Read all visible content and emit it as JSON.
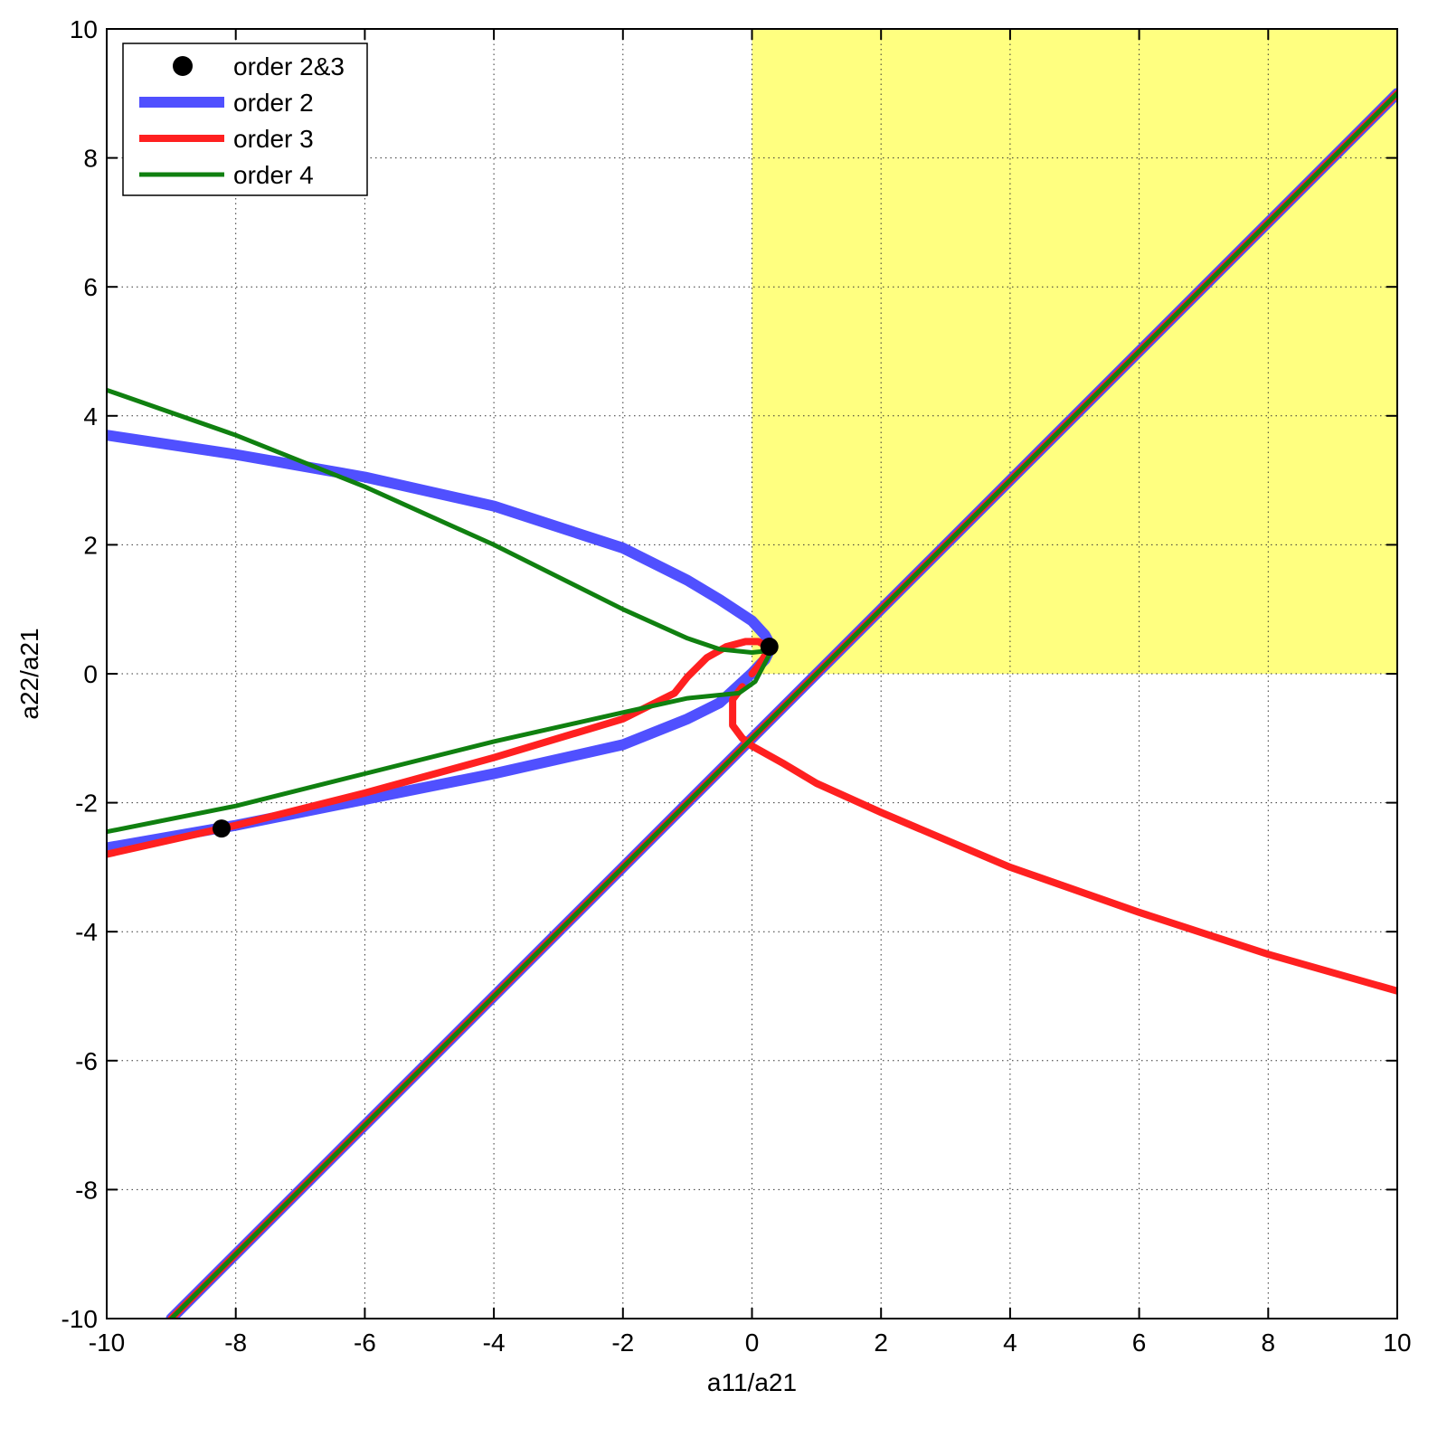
{
  "chart_data": {
    "type": "line",
    "title": "",
    "xlabel": "a11/a21",
    "ylabel": "a22/a21",
    "xlim": [
      -10,
      10
    ],
    "ylim": [
      -10,
      10
    ],
    "xticks": [
      -10,
      -8,
      -6,
      -4,
      -2,
      0,
      2,
      4,
      6,
      8,
      10
    ],
    "yticks": [
      -10,
      -8,
      -6,
      -4,
      -2,
      0,
      2,
      4,
      6,
      8,
      10
    ],
    "grid": true,
    "legend_position": "top-left",
    "shaded_region": {
      "x": [
        0,
        10
      ],
      "y": [
        0,
        10
      ],
      "color": "#ffff80"
    },
    "points": {
      "name": "order 2&3",
      "color": "#000000",
      "x": [
        0.27,
        -8.22
      ],
      "y": [
        0.42,
        -2.4
      ]
    },
    "series": [
      {
        "name": "order 2",
        "color": "#5050ff",
        "width": 12,
        "segments": [
          {
            "x": [
              -10,
              -8,
              -6,
              -4,
              -2,
              -1,
              -0.5,
              0,
              0.2,
              0.3,
              0.2,
              0,
              -0.5,
              -1,
              -2,
              -4,
              -6,
              -8,
              -10
            ],
            "y": [
              3.7,
              3.4,
              3.05,
              2.6,
              1.95,
              1.45,
              1.15,
              0.82,
              0.6,
              0.42,
              0.22,
              0.01,
              -0.45,
              -0.7,
              -1.1,
              -1.55,
              -1.95,
              -2.35,
              -2.7
            ]
          },
          {
            "x": [
              -9,
              10
            ],
            "y": [
              -10,
              9
            ]
          }
        ]
      },
      {
        "name": "order 3",
        "color": "#ff2020",
        "width": 8,
        "segments": [
          {
            "x": [
              -10,
              -8,
              -6,
              -4,
              -2,
              -1.2,
              -1,
              -0.7,
              -0.4,
              -0.1,
              0.1,
              0.25,
              0.2,
              0.1,
              0
            ],
            "y": [
              -2.8,
              -2.35,
              -1.85,
              -1.3,
              -0.7,
              -0.3,
              -0.05,
              0.25,
              0.42,
              0.5,
              0.5,
              0.42,
              0.28,
              0.12,
              0
            ]
          },
          {
            "x": [
              -0.15,
              -0.3,
              -0.3,
              -0.15,
              0,
              0.5,
              1,
              2,
              4,
              6,
              8,
              10
            ],
            "y": [
              -0.2,
              -0.4,
              -0.8,
              -1.0,
              -1.12,
              -1.4,
              -1.7,
              -2.15,
              -3.0,
              -3.7,
              -4.35,
              -4.92
            ]
          },
          {
            "x": [
              -9,
              10
            ],
            "y": [
              -10,
              9
            ]
          }
        ]
      },
      {
        "name": "order 4",
        "color": "#108010",
        "width": 5,
        "segments": [
          {
            "x": [
              -10,
              -8,
              -6,
              -4,
              -2,
              -1,
              -0.5,
              0,
              0.2,
              0.27
            ],
            "y": [
              4.4,
              3.7,
              2.9,
              2.0,
              1.0,
              0.55,
              0.38,
              0.33,
              0.35,
              0.42
            ]
          },
          {
            "x": [
              -10,
              -8,
              -6,
              -4,
              -2,
              -1,
              -0.5,
              -0.2,
              0.05,
              0.27
            ],
            "y": [
              -2.45,
              -2.05,
              -1.55,
              -1.05,
              -0.6,
              -0.38,
              -0.33,
              -0.3,
              -0.12,
              0.3
            ]
          },
          {
            "x": [
              -9,
              10
            ],
            "y": [
              -10,
              9
            ]
          }
        ]
      }
    ]
  }
}
